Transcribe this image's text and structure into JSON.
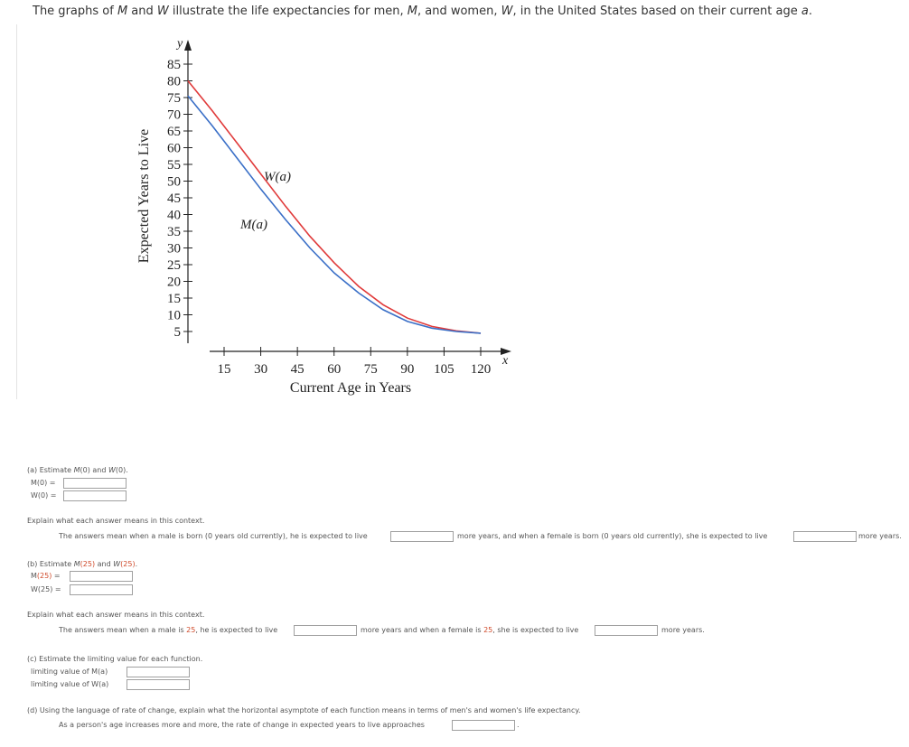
{
  "intro": {
    "text_before": "The graphs of ",
    "M": "M",
    "and": " and ",
    "W": "W",
    "text_mid": " illustrate the life expectancies for men, ",
    "M2": "M",
    "text_mid2": ", and women, ",
    "W2": "W",
    "text_end": ", in the United States based on their current age ",
    "a": "a",
    "period": "."
  },
  "chart_data": {
    "type": "line",
    "xlabel": "Current Age in Years",
    "ylabel": "Expected Years to Live",
    "x_var": "x",
    "y_var": "y",
    "x_ticks": [
      15,
      30,
      45,
      60,
      75,
      90,
      105,
      120
    ],
    "y_ticks": [
      5,
      10,
      15,
      20,
      25,
      30,
      35,
      40,
      45,
      50,
      55,
      60,
      65,
      70,
      75,
      80,
      85
    ],
    "xlim": [
      0,
      125
    ],
    "ylim": [
      0,
      88
    ],
    "series": [
      {
        "name": "W(a)",
        "color": "#e03a3a",
        "x": [
          0,
          10,
          20,
          30,
          40,
          50,
          60,
          70,
          80,
          90,
          100,
          110,
          120
        ],
        "y": [
          80,
          71,
          61.5,
          52,
          42.5,
          33.5,
          25.5,
          18.5,
          13,
          9,
          6.5,
          5.2,
          4.5
        ]
      },
      {
        "name": "M(a)",
        "color": "#3a6fc7",
        "x": [
          0,
          10,
          20,
          30,
          40,
          50,
          60,
          70,
          80,
          90,
          100,
          110,
          120
        ],
        "y": [
          75.5,
          66.5,
          57,
          47.5,
          38.5,
          30,
          22.5,
          16.5,
          11.5,
          8,
          6,
          5,
          4.5
        ]
      }
    ]
  },
  "part_a": {
    "prompt_pre": "(a) Estimate ",
    "prompt_m": "M",
    "prompt_mid": "(0) and ",
    "prompt_w": "W",
    "prompt_end": "(0).",
    "m_label": "M(0)  =",
    "w_label": "W(0)  =",
    "m_value": "",
    "w_value": "",
    "explain": "Explain what each answer means in this context.",
    "sentence_1": "The answers mean when a male is born (0 years old currently), he is expected to live",
    "sentence_2": "more years, and when a female is born (0 years old currently), she is expected to live",
    "sentence_3": "more years.",
    "male_years": "",
    "female_years": ""
  },
  "part_b": {
    "prompt_pre": "(b) Estimate ",
    "prompt_m": "M",
    "prompt_m_arg": "(25)",
    "prompt_mid": " and ",
    "prompt_w": "W",
    "prompt_w_arg": "(25)",
    "prompt_end": ".",
    "m_label_pre": "M",
    "m_label_arg": "(25)",
    "m_label_eq": "  =",
    "w_label": "W(25)  =",
    "m_value": "",
    "w_value": "",
    "explain": "Explain what each answer means in this context.",
    "sentence_1": "The answers mean when a male is ",
    "age_1": "25",
    "sentence_2": ", he is expected to live",
    "sentence_3": "more years and when a female is ",
    "age_2": "25",
    "sentence_4": ", she is expected to live",
    "sentence_5": "more years.",
    "male_years": "",
    "female_years": ""
  },
  "part_c": {
    "prompt": "(c) Estimate the limiting value for each function.",
    "m_label": "limiting value of M(a)",
    "w_label": "limiting value of W(a)",
    "m_value": "",
    "w_value": ""
  },
  "part_d": {
    "prompt": "(d) Using the language of rate of change, explain what the horizontal asymptote of each function means in terms of men's and women's life expectancy.",
    "sentence": "As a person's age increases more and more, the rate of change in expected years to live approaches",
    "end": ".",
    "value": ""
  }
}
